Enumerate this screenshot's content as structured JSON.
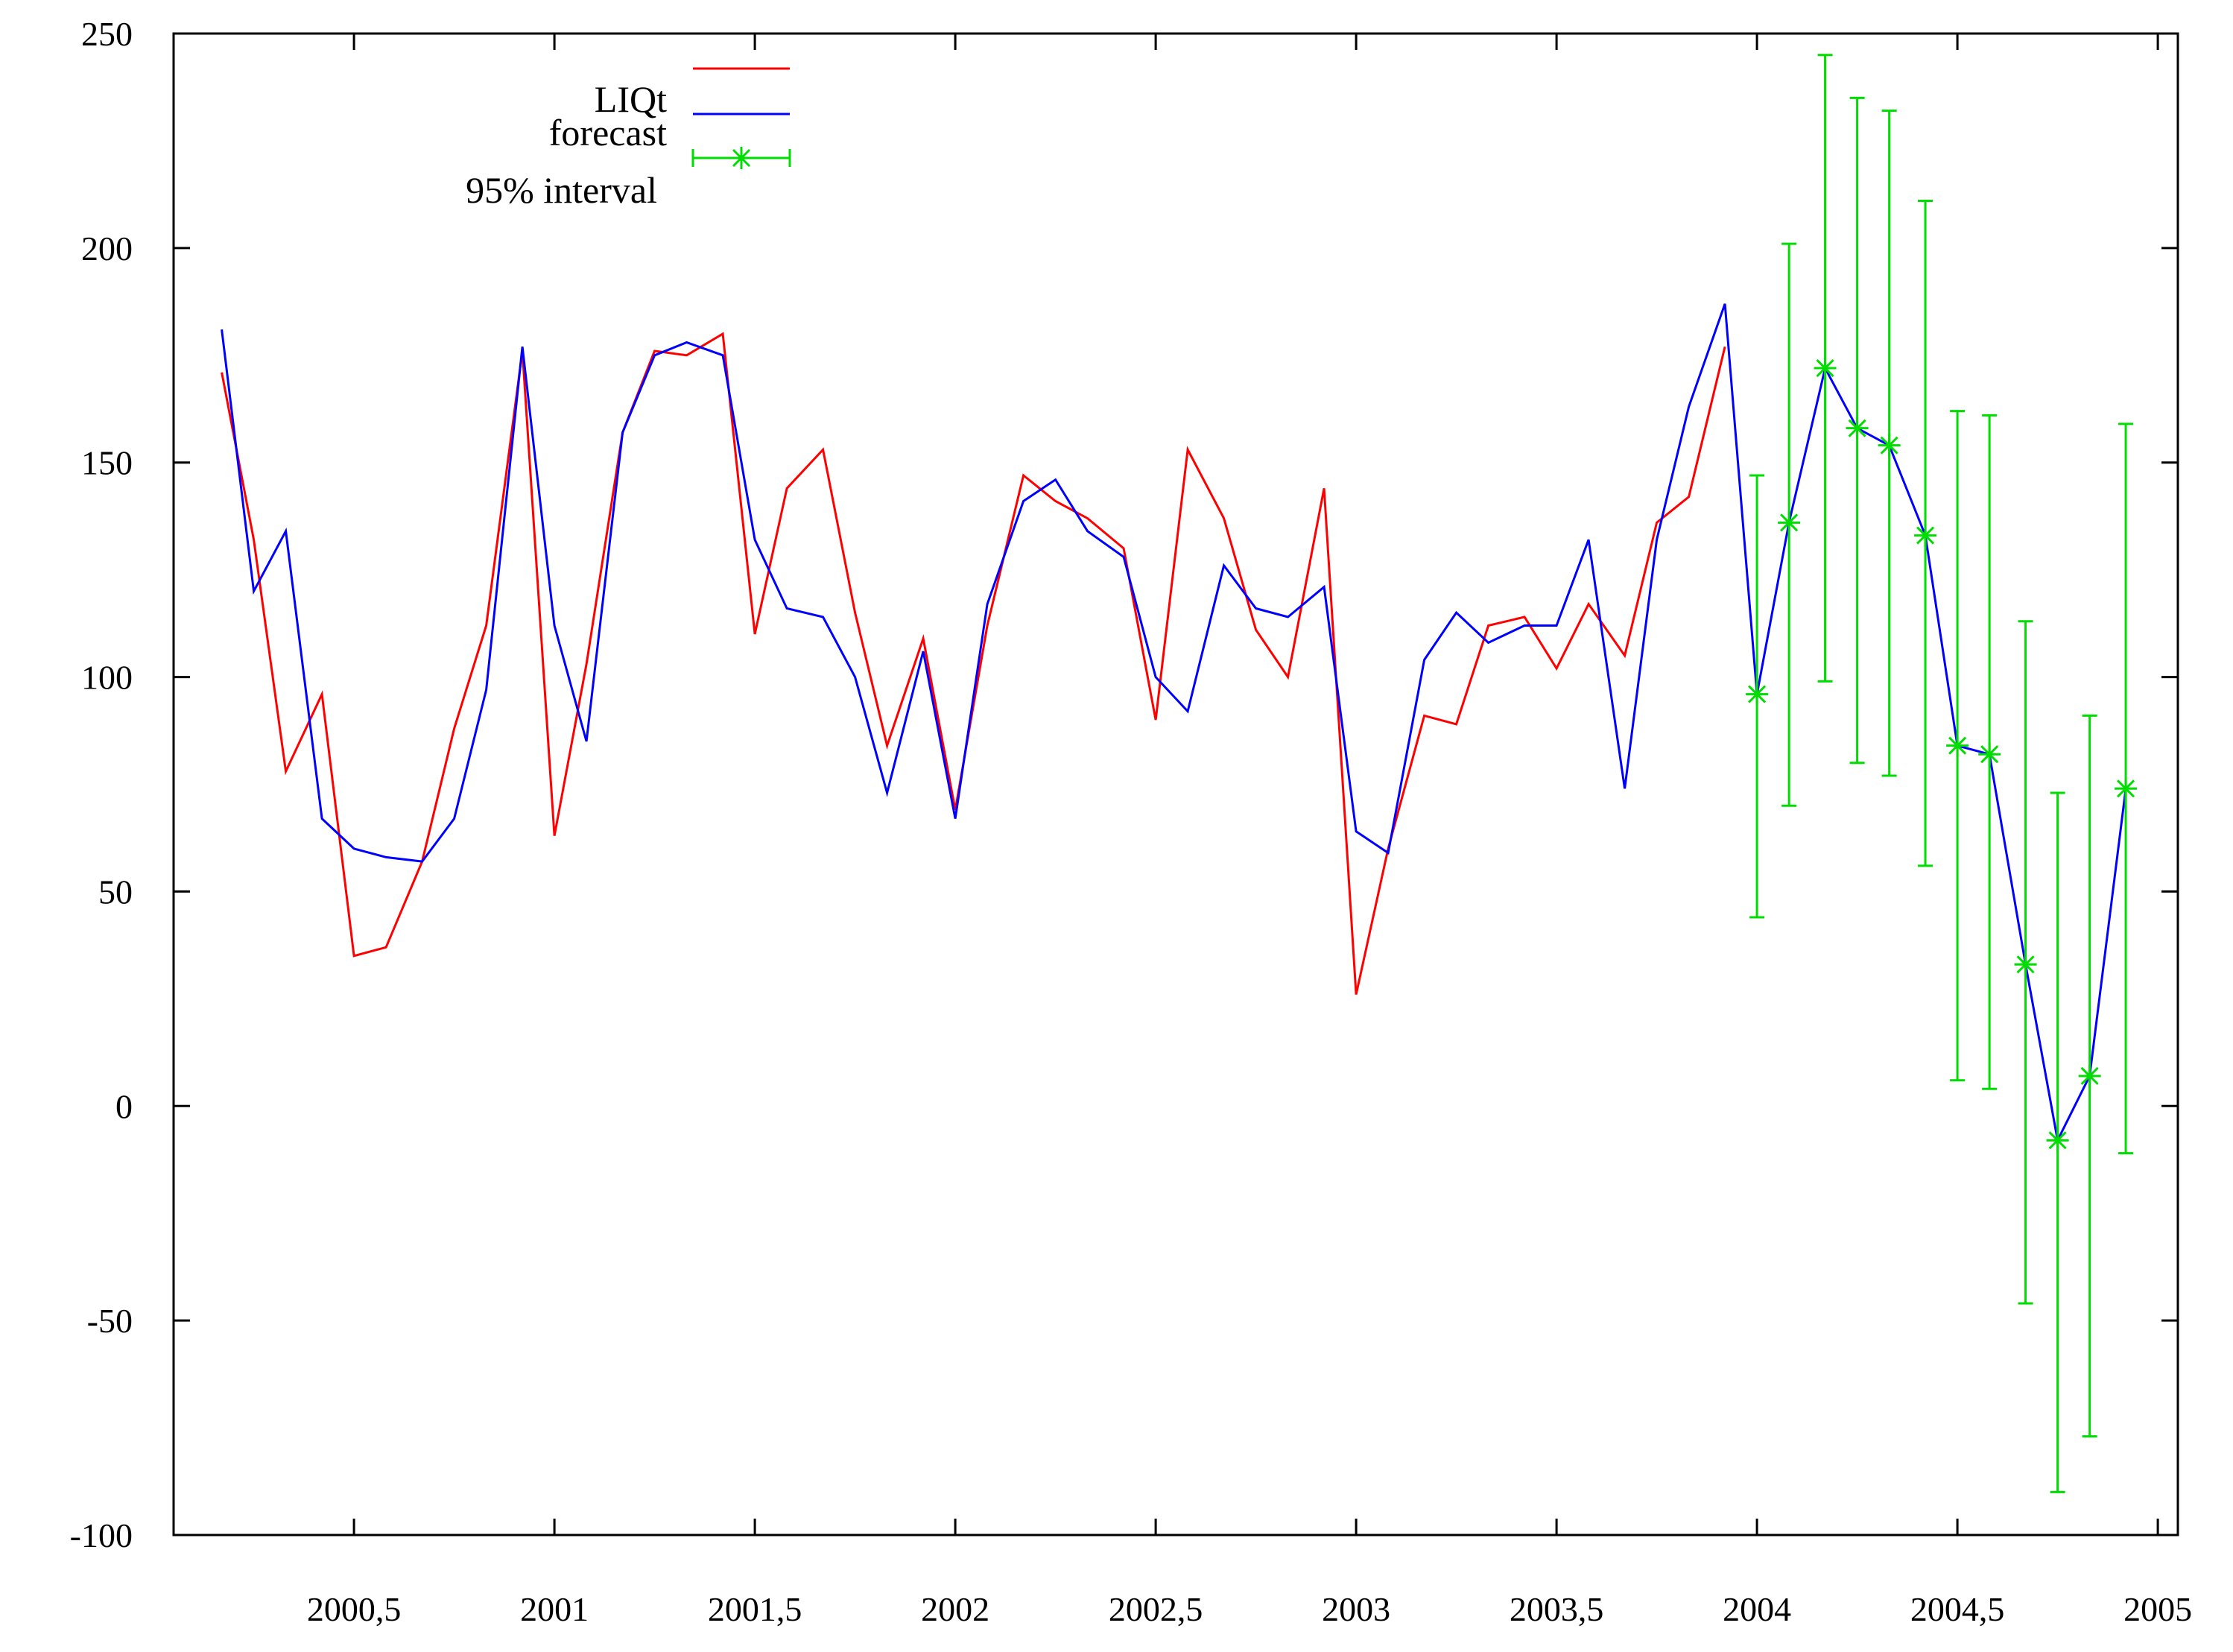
{
  "chart_data": {
    "type": "line",
    "title": "",
    "xlabel": "",
    "ylabel": "",
    "xlim": [
      2000.05,
      2005.05
    ],
    "ylim": [
      -100,
      250
    ],
    "x_ticks": [
      2000.5,
      2001,
      2001.5,
      2002,
      2002.5,
      2003,
      2003.5,
      2004,
      2004.5,
      2005
    ],
    "x_tick_labels": [
      "2000,5",
      "2001",
      "2001,5",
      "2002",
      "2002,5",
      "2003",
      "2003,5",
      "2004",
      "2004,5",
      "2005"
    ],
    "y_ticks": [
      -100,
      -50,
      0,
      50,
      100,
      150,
      200,
      250
    ],
    "y_tick_labels": [
      "-100",
      "-50",
      "0",
      "50",
      "100",
      "150",
      "200",
      "250"
    ],
    "legend_position": "top-left",
    "legend": [
      "LIQt",
      "forecast",
      "95% interval"
    ],
    "colors": {
      "LIQt": "#ff0000",
      "forecast": "#0000ff",
      "interval": "#00dd00",
      "axes": "#000000"
    },
    "series": [
      {
        "name": "LIQt",
        "x": [
          2000.17,
          2000.25,
          2000.33,
          2000.42,
          2000.5,
          2000.58,
          2000.67,
          2000.75,
          2000.83,
          2000.92,
          2001.0,
          2001.08,
          2001.17,
          2001.25,
          2001.33,
          2001.42,
          2001.5,
          2001.58,
          2001.67,
          2001.75,
          2001.83,
          2001.92,
          2002.0,
          2002.08,
          2002.17,
          2002.25,
          2002.33,
          2002.42,
          2002.5,
          2002.58,
          2002.67,
          2002.75,
          2002.83,
          2002.92,
          2003.0,
          2003.08,
          2003.17,
          2003.25,
          2003.33,
          2003.42,
          2003.5,
          2003.58,
          2003.67,
          2003.75,
          2003.83,
          2003.92
        ],
        "y": [
          171,
          132,
          78,
          96,
          35,
          37,
          57,
          88,
          112,
          176,
          63,
          103,
          157,
          176,
          175,
          180,
          110,
          144,
          153,
          115,
          84,
          109,
          69,
          112,
          147,
          141,
          137,
          130,
          90,
          153,
          137,
          111,
          100,
          144,
          26,
          60,
          91,
          89,
          112,
          114,
          102,
          117,
          105,
          136,
          142,
          177
        ]
      },
      {
        "name": "forecast",
        "x": [
          2000.17,
          2000.25,
          2000.33,
          2000.42,
          2000.5,
          2000.58,
          2000.67,
          2000.75,
          2000.83,
          2000.92,
          2001.0,
          2001.08,
          2001.17,
          2001.25,
          2001.33,
          2001.42,
          2001.5,
          2001.58,
          2001.67,
          2001.75,
          2001.83,
          2001.92,
          2002.0,
          2002.08,
          2002.17,
          2002.25,
          2002.33,
          2002.42,
          2002.5,
          2002.58,
          2002.67,
          2002.75,
          2002.83,
          2002.92,
          2003.0,
          2003.08,
          2003.17,
          2003.25,
          2003.33,
          2003.42,
          2003.5,
          2003.58,
          2003.67,
          2003.75,
          2003.83,
          2003.92,
          2004.0,
          2004.08,
          2004.17,
          2004.25,
          2004.33,
          2004.42,
          2004.5,
          2004.58,
          2004.67,
          2004.75,
          2004.83,
          2004.92
        ],
        "y": [
          181,
          120,
          134,
          67,
          60,
          58,
          57,
          67,
          97,
          177,
          112,
          85,
          157,
          175,
          178,
          175,
          132,
          116,
          114,
          100,
          73,
          106,
          67,
          117,
          141,
          146,
          134,
          128,
          100,
          92,
          126,
          116,
          114,
          121,
          64,
          59,
          104,
          115,
          108,
          112,
          112,
          132,
          74,
          132,
          163,
          187,
          96,
          136,
          172,
          158,
          154,
          133,
          84,
          82,
          33,
          -8,
          7,
          74
        ]
      }
    ],
    "interval": {
      "name": "95% interval",
      "x": [
        2004.0,
        2004.08,
        2004.17,
        2004.25,
        2004.33,
        2004.42,
        2004.5,
        2004.58,
        2004.67,
        2004.75,
        2004.83,
        2004.92
      ],
      "center": [
        96,
        136,
        172,
        158,
        154,
        133,
        84,
        82,
        33,
        -8,
        7,
        74
      ],
      "lower": [
        44,
        70,
        99,
        80,
        77,
        56,
        6,
        4,
        -46,
        -90,
        -77,
        -11
      ],
      "upper": [
        147,
        201,
        245,
        235,
        232,
        211,
        162,
        161,
        113,
        73,
        91,
        159
      ]
    }
  }
}
